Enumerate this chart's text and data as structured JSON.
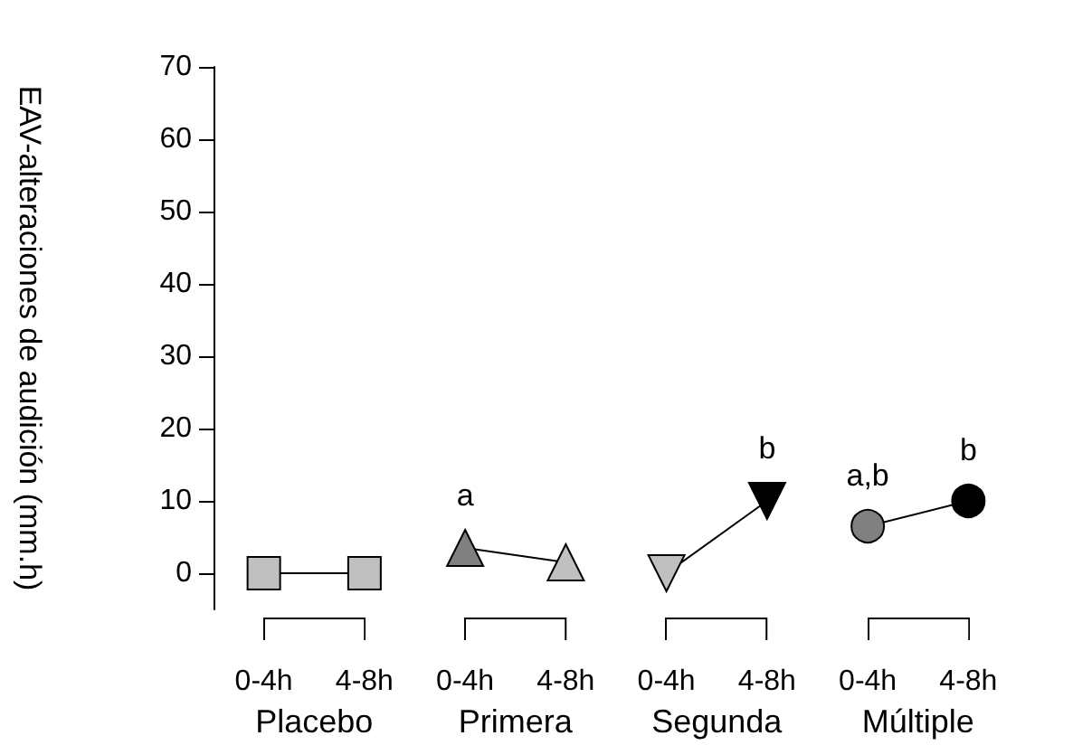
{
  "chart_data": {
    "type": "line",
    "ylabel": "EAV-alteraciones de audición (mm.h)",
    "categories": [
      "0-4h",
      "4-8h",
      "0-4h",
      "4-8h",
      "0-4h",
      "4-8h",
      "0-4h",
      "4-8h"
    ],
    "ylim": [
      -5,
      70
    ],
    "yticks": [
      0,
      10,
      20,
      30,
      40,
      50,
      60,
      70
    ],
    "grid": false,
    "line_style": "solid",
    "annotations": [
      "Placebo",
      "Primera",
      "Segunda",
      "Múltiple"
    ],
    "series": [
      {
        "color": "#000000",
        "marker": "square",
        "colors": [
          "#c0c0c0",
          "#c0c0c0",
          null,
          null,
          null,
          null,
          null,
          null
        ],
        "values": [
          0,
          0,
          null,
          null,
          null,
          null,
          null,
          null
        ]
      },
      {
        "color": "#000000",
        "marker": "triangle",
        "colors": [
          null,
          null,
          "#808080",
          "#c0c0c0",
          null,
          null,
          null,
          null
        ],
        "values": [
          null,
          null,
          3.5,
          1.5,
          null,
          null,
          null,
          null
        ],
        "value_labels": [
          null,
          null,
          "a",
          null,
          null,
          null,
          null,
          null
        ]
      },
      {
        "color": "#000000",
        "marker": "triangle-down",
        "colors": [
          null,
          null,
          null,
          null,
          "#c0c0c0",
          "#000000",
          null,
          null
        ],
        "values": [
          null,
          null,
          null,
          null,
          0,
          10,
          null,
          null
        ],
        "value_labels": [
          null,
          null,
          null,
          null,
          null,
          "b",
          null,
          null
        ]
      },
      {
        "color": "#000000",
        "marker": "circle",
        "colors": [
          null,
          null,
          null,
          null,
          null,
          null,
          "#808080",
          "#000000"
        ],
        "values": [
          null,
          null,
          null,
          null,
          null,
          null,
          6.5,
          10
        ],
        "value_labels": [
          null,
          null,
          null,
          null,
          null,
          null,
          "a,b",
          "b"
        ]
      }
    ]
  }
}
